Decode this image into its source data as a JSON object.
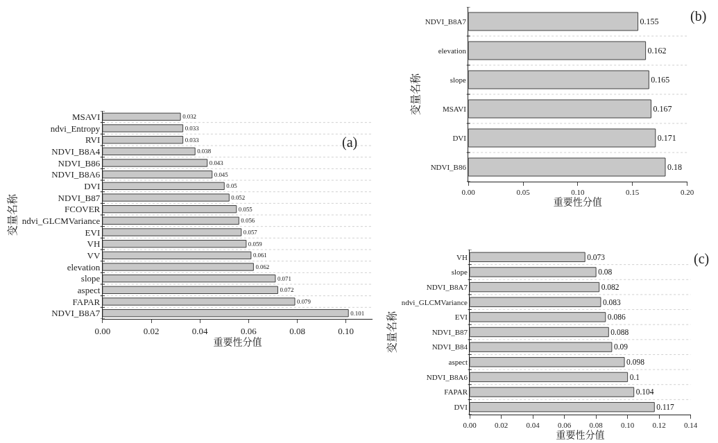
{
  "chart_data": [
    {
      "type": "bar",
      "orientation": "horizontal",
      "annotations": [
        "(a)"
      ],
      "xlabel": "重要性分值",
      "ylabel": "变量名称",
      "categories": [
        "MSAVI",
        "ndvi_Entropy",
        "RVI",
        "NDVI_B8A4",
        "NDVI_B86",
        "NDVI_B8A6",
        "DVI",
        "NDVI_B87",
        "FCOVER",
        "ndvi_GLCMVariance",
        "EVI",
        "VH",
        "VV",
        "elevation",
        "slope",
        "aspect",
        "FAPAR",
        "NDVI_B8A7"
      ],
      "values": [
        0.032,
        0.033,
        0.033,
        0.038,
        0.043,
        0.045,
        0.05,
        0.052,
        0.055,
        0.056,
        0.057,
        0.059,
        0.061,
        0.062,
        0.071,
        0.072,
        0.079,
        0.101
      ],
      "color": "#c8c8c8",
      "xlim": [
        0,
        0.111
      ],
      "xticks": [
        {
          "value": 0,
          "label": "0.00"
        },
        0.02,
        0.04,
        0.06,
        0.08,
        {
          "value": 0.1,
          "label": "0.10"
        }
      ],
      "data_labels": true,
      "grid": "y"
    },
    {
      "type": "bar",
      "orientation": "horizontal",
      "annotations": [
        "(b)"
      ],
      "xlabel": "重要性分值",
      "ylabel": "变量名称",
      "categories": [
        "NDVI_B8A7",
        "elevation",
        "slope",
        "MSAVI",
        "DVI",
        "NDVI_B86"
      ],
      "values": [
        0.155,
        0.162,
        0.165,
        0.167,
        0.171,
        0.18
      ],
      "color": "#c8c8c8",
      "xlim": [
        0,
        0.2
      ],
      "xticks": [
        {
          "value": 0,
          "label": "0.00"
        },
        0.05,
        {
          "value": 0.1,
          "label": "0.10"
        },
        0.15,
        {
          "value": 0.2,
          "label": "0.20"
        }
      ],
      "data_labels": true,
      "grid": "y"
    },
    {
      "type": "bar",
      "orientation": "horizontal",
      "annotations": [
        "(c)"
      ],
      "xlabel": "重要性分值",
      "ylabel": "变量名称",
      "categories": [
        "VH",
        "slope",
        "NDVI_B8A7",
        "ndvi_GLCMVariance",
        "EVI",
        "NDVI_B87",
        "NDVI_B84",
        "aspect",
        "NDVI_B8A6",
        "FAPAR",
        "DVI"
      ],
      "values": [
        0.073,
        0.08,
        0.082,
        0.083,
        0.086,
        0.088,
        0.09,
        0.098,
        0.1,
        0.104,
        0.117
      ],
      "color": "#c8c8c8",
      "xlim": [
        0,
        0.14
      ],
      "xticks": [
        {
          "value": 0,
          "label": "0.00"
        },
        0.02,
        0.04,
        0.06,
        0.08,
        {
          "value": 0.1,
          "label": "0.10"
        },
        0.12,
        0.14
      ],
      "data_labels": true,
      "grid": "y"
    }
  ]
}
